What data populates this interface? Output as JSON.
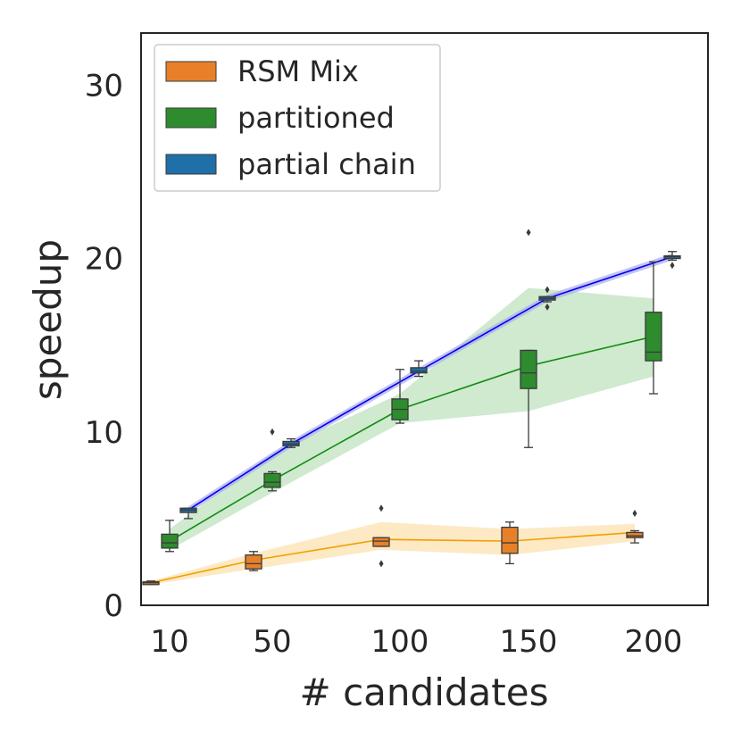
{
  "chart_data": {
    "type": "box",
    "title": "",
    "xlabel": "# candidates",
    "ylabel": "speedup",
    "ylim": [
      0,
      33
    ],
    "yticks": [
      0,
      10,
      20,
      30
    ],
    "categories": [
      "10",
      "50",
      "100",
      "150",
      "200"
    ],
    "legend_position": "top-left",
    "series": [
      {
        "name": "RSM Mix",
        "color": "#e8802a",
        "line_color": "#f0a000",
        "band_color": "#fbd38a",
        "means": [
          1.3,
          2.6,
          3.8,
          3.7,
          4.2
        ],
        "band_low": [
          1.2,
          2.1,
          3.2,
          2.9,
          3.7
        ],
        "band_high": [
          1.4,
          3.0,
          4.8,
          4.4,
          4.7
        ],
        "boxes": [
          {
            "min": 1.2,
            "q1": 1.25,
            "median": 1.3,
            "q3": 1.35,
            "max": 1.4,
            "outliers": []
          },
          {
            "min": 2.0,
            "q1": 2.1,
            "median": 2.4,
            "q3": 2.9,
            "max": 3.1,
            "outliers": []
          },
          {
            "min": 3.4,
            "q1": 3.4,
            "median": 3.7,
            "q3": 3.9,
            "max": 3.9,
            "outliers": [
              5.6,
              2.4
            ]
          },
          {
            "min": 2.4,
            "q1": 3.0,
            "median": 3.6,
            "q3": 4.5,
            "max": 4.8,
            "outliers": []
          },
          {
            "min": 3.6,
            "q1": 3.9,
            "median": 4.0,
            "q3": 4.2,
            "max": 4.3,
            "outliers": [
              5.3
            ]
          }
        ]
      },
      {
        "name": "partitioned",
        "color": "#2e8b2e",
        "line_color": "#138d13",
        "band_color": "#9fd59f",
        "means": [
          3.7,
          7.2,
          11.3,
          13.8,
          15.5
        ],
        "band_low": [
          3.2,
          6.5,
          10.5,
          11.2,
          13.2
        ],
        "band_high": [
          4.4,
          8.8,
          12.2,
          18.3,
          17.7
        ],
        "boxes": [
          {
            "min": 3.1,
            "q1": 3.3,
            "median": 3.6,
            "q3": 4.1,
            "max": 4.9,
            "outliers": []
          },
          {
            "min": 6.6,
            "q1": 6.8,
            "median": 7.1,
            "q3": 7.6,
            "max": 7.7,
            "outliers": [
              10.0
            ]
          },
          {
            "min": 10.5,
            "q1": 10.7,
            "median": 11.3,
            "q3": 11.9,
            "max": 13.6,
            "outliers": []
          },
          {
            "min": 9.1,
            "q1": 12.5,
            "median": 13.4,
            "q3": 14.7,
            "max": 14.7,
            "outliers": [
              21.5
            ]
          },
          {
            "min": 12.2,
            "q1": 14.1,
            "median": 14.6,
            "q3": 16.9,
            "max": 19.8,
            "outliers": []
          }
        ]
      },
      {
        "name": "partial chain",
        "color": "#1f6fa8",
        "line_color": "#0000ee",
        "band_color": "#aaaaf0",
        "means": [
          5.5,
          9.3,
          13.5,
          17.7,
          20.1
        ],
        "band_low": [
          5.3,
          9.1,
          13.3,
          17.5,
          19.9
        ],
        "band_high": [
          5.7,
          9.5,
          13.7,
          17.9,
          20.3
        ],
        "boxes": [
          {
            "min": 5.0,
            "q1": 5.35,
            "median": 5.5,
            "q3": 5.6,
            "max": 5.6,
            "outliers": []
          },
          {
            "min": 9.1,
            "q1": 9.2,
            "median": 9.3,
            "q3": 9.45,
            "max": 9.6,
            "outliers": []
          },
          {
            "min": 13.2,
            "q1": 13.4,
            "median": 13.5,
            "q3": 13.7,
            "max": 14.1,
            "outliers": []
          },
          {
            "min": 17.5,
            "q1": 17.6,
            "median": 17.7,
            "q3": 17.8,
            "max": 17.8,
            "outliers": [
              18.2,
              17.2
            ]
          },
          {
            "min": 19.9,
            "q1": 20.0,
            "median": 20.1,
            "q3": 20.15,
            "max": 20.4,
            "outliers": [
              19.6
            ]
          }
        ]
      }
    ]
  }
}
